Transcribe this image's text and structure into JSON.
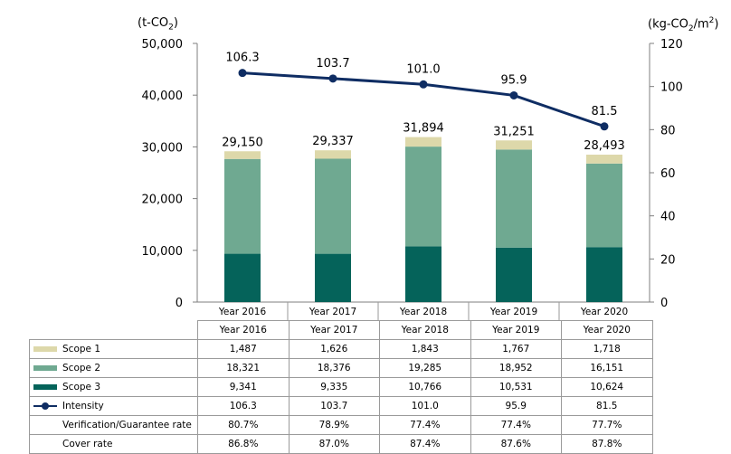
{
  "chart_data": {
    "type": "bar",
    "categories": [
      "Year 2016",
      "Year 2017",
      "Year 2018",
      "Year 2019",
      "Year 2020"
    ],
    "series": [
      {
        "name": "Scope 1",
        "kind": "stacked-bar",
        "axis": "left",
        "color": "#ddd8aa",
        "values": [
          1487,
          1626,
          1843,
          1767,
          1718
        ]
      },
      {
        "name": "Scope 2",
        "kind": "stacked-bar",
        "axis": "left",
        "color": "#6fa991",
        "values": [
          18321,
          18376,
          19285,
          18952,
          16151
        ]
      },
      {
        "name": "Scope 3",
        "kind": "stacked-bar",
        "axis": "left",
        "color": "#05635a",
        "values": [
          9341,
          9335,
          10766,
          10531,
          10624
        ]
      },
      {
        "name": "Intensity",
        "kind": "line",
        "axis": "right",
        "color": "#0f2d63",
        "values": [
          106.3,
          103.7,
          101.0,
          95.9,
          81.5
        ]
      }
    ],
    "totals": [
      "29,150",
      "29,337",
      "31,894",
      "31,251",
      "28,493"
    ],
    "intensity_labels": [
      "106.3",
      "103.7",
      "101.0",
      "95.9",
      "81.5"
    ],
    "y_left": {
      "unit": "(t-CO2)",
      "range": [
        0,
        50000
      ],
      "ticks": [
        "0",
        "10,000",
        "20,000",
        "30,000",
        "40,000",
        "50,000"
      ],
      "tick_values": [
        0,
        10000,
        20000,
        30000,
        40000,
        50000
      ]
    },
    "y_right": {
      "unit": "(kg-CO2/m2)",
      "range": [
        0,
        120
      ],
      "ticks": [
        "0",
        "20",
        "40",
        "60",
        "80",
        "100",
        "120"
      ],
      "tick_values": [
        0,
        20,
        40,
        60,
        80,
        100,
        120
      ]
    },
    "grid": false,
    "legend": "data-table below chart"
  },
  "units": {
    "left": {
      "prefix": "(t-CO",
      "sub": "2",
      "suffix": ")"
    },
    "right": {
      "prefix": "(kg-CO",
      "sub": "2",
      "mid": "/m",
      "sup": "2",
      "suffix": ")"
    }
  },
  "table": {
    "header": [
      "Year 2016",
      "Year 2017",
      "Year 2018",
      "Year 2019",
      "Year 2020"
    ],
    "rows": [
      {
        "label": "Scope 1",
        "key": "swatch",
        "color": "#ddd8aa",
        "cells": [
          "1,487",
          "1,626",
          "1,843",
          "1,767",
          "1,718"
        ]
      },
      {
        "label": "Scope 2",
        "key": "swatch",
        "color": "#6fa991",
        "cells": [
          "18,321",
          "18,376",
          "19,285",
          "18,952",
          "16,151"
        ]
      },
      {
        "label": "Scope 3",
        "key": "swatch",
        "color": "#05635a",
        "cells": [
          "9,341",
          "9,335",
          "10,766",
          "10,531",
          "10,624"
        ]
      },
      {
        "label": "Intensity",
        "key": "line",
        "color": "#0f2d63",
        "cells": [
          "106.3",
          "103.7",
          "101.0",
          "95.9",
          "81.5"
        ]
      },
      {
        "label": "Verification/Guarantee rate",
        "key": "none",
        "cells": [
          "80.7%",
          "78.9%",
          "77.4%",
          "77.4%",
          "77.7%"
        ]
      },
      {
        "label": "Cover rate",
        "key": "none",
        "cells": [
          "86.8%",
          "87.0%",
          "87.4%",
          "87.6%",
          "87.8%"
        ]
      }
    ]
  }
}
